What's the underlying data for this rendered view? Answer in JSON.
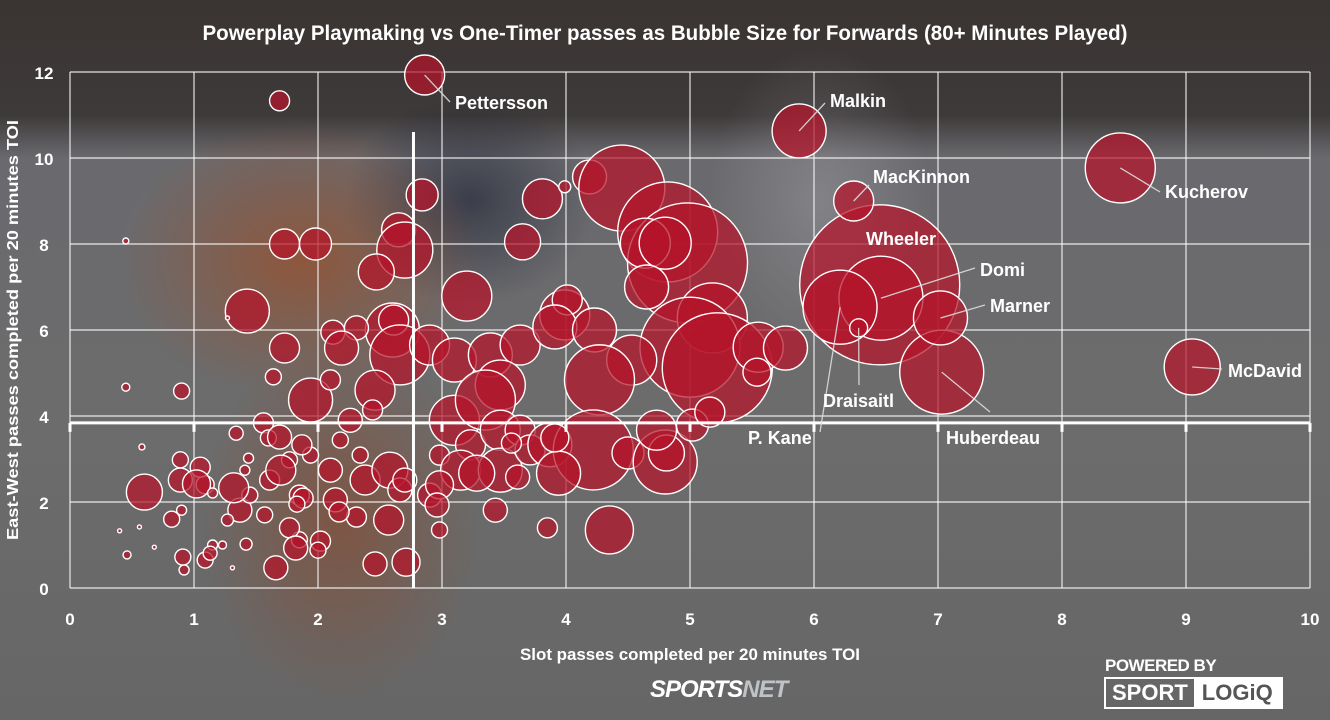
{
  "chart_data": {
    "type": "scatter",
    "bubble": true,
    "title": "Powerplay Playmaking vs One-Timer passes as Bubble Size for Forwards (80+ Minutes Played)",
    "xlabel": "Slot passes completed per 20 minutes TOI",
    "ylabel": "East-West passes completed per 20 minutes TOI",
    "xlim": [
      0,
      10
    ],
    "ylim": [
      0,
      12
    ],
    "xticks": [
      "0",
      "1",
      "2",
      "3",
      "4",
      "5",
      "6",
      "7",
      "8",
      "9",
      "10"
    ],
    "yticks": [
      "0",
      "2",
      "4",
      "6",
      "8",
      "10",
      "12"
    ],
    "grid": true,
    "reference_lines": {
      "x": 2.77,
      "y": 3.84
    },
    "colors": {
      "bubble": "#b4142a",
      "stroke": "#ffffff"
    },
    "labeled_players": [
      {
        "name": "Pettersson",
        "x": 2.86,
        "y": 11.93,
        "size": 10
      },
      {
        "name": "Malkin",
        "x": 5.88,
        "y": 10.63,
        "size": 13.5
      },
      {
        "name": "MacKinnon",
        "x": 6.32,
        "y": 9.0,
        "size": 10
      },
      {
        "name": "Kucherov",
        "x": 8.47,
        "y": 9.77,
        "size": 17.5
      },
      {
        "name": "Wheeler",
        "x": 6.53,
        "y": 7.05,
        "size": 40
      },
      {
        "name": "Domi",
        "x": 6.54,
        "y": 6.74,
        "size": 21
      },
      {
        "name": "Marner",
        "x": 7.02,
        "y": 6.28,
        "size": 13.5
      },
      {
        "name": "P. Kane",
        "x": 6.21,
        "y": 6.53,
        "size": 18.5
      },
      {
        "name": "Draisaitl",
        "x": 6.36,
        "y": 6.05,
        "size": 4.5
      },
      {
        "name": "Huberdeau",
        "x": 7.03,
        "y": 5.02,
        "size": 21
      },
      {
        "name": "McDavid",
        "x": 9.05,
        "y": 5.14,
        "size": 14
      }
    ],
    "points": [
      [
        1.69,
        11.33,
        5
      ],
      [
        0.45,
        8.07,
        1.5
      ],
      [
        1.73,
        8.0,
        7.5
      ],
      [
        1.98,
        8.0,
        8
      ],
      [
        1.43,
        6.44,
        11
      ],
      [
        1.27,
        6.28,
        1
      ],
      [
        1.73,
        5.58,
        7.5
      ],
      [
        1.64,
        4.91,
        4
      ],
      [
        0.45,
        4.67,
        2
      ],
      [
        0.9,
        4.58,
        4
      ],
      [
        2.84,
        9.14,
        8
      ],
      [
        2.65,
        8.33,
        8.5
      ],
      [
        2.7,
        7.86,
        14
      ],
      [
        2.47,
        7.35,
        9
      ],
      [
        3.2,
        6.79,
        12.5
      ],
      [
        2.6,
        6.0,
        13.5
      ],
      [
        2.61,
        6.23,
        7.5
      ],
      [
        2.12,
        5.95,
        6
      ],
      [
        2.31,
        6.05,
        6
      ],
      [
        2.19,
        5.58,
        8.5
      ],
      [
        1.94,
        4.37,
        11
      ],
      [
        2.1,
        4.84,
        5
      ],
      [
        2.66,
        5.42,
        15
      ],
      [
        2.46,
        4.6,
        10
      ],
      [
        2.9,
        5.65,
        10
      ],
      [
        3.1,
        5.3,
        11
      ],
      [
        3.39,
        5.42,
        11
      ],
      [
        3.63,
        5.65,
        10
      ],
      [
        3.81,
        9.05,
        10
      ],
      [
        3.99,
        9.33,
        3
      ],
      [
        4.19,
        9.56,
        8.5
      ],
      [
        4.45,
        9.3,
        21.5
      ],
      [
        4.82,
        8.28,
        25
      ],
      [
        4.98,
        7.56,
        30
      ],
      [
        4.64,
        8.02,
        12.5
      ],
      [
        4.8,
        8.02,
        13
      ],
      [
        4.65,
        7.0,
        11
      ],
      [
        3.65,
        8.05,
        9
      ],
      [
        5.18,
        6.28,
        17.5
      ],
      [
        5.0,
        5.6,
        25
      ],
      [
        5.22,
        5.12,
        27.5
      ],
      [
        5.55,
        5.6,
        12.5
      ],
      [
        5.77,
        5.58,
        11
      ],
      [
        5.54,
        5.02,
        7
      ],
      [
        4.53,
        5.3,
        12.5
      ],
      [
        3.99,
        6.35,
        12.5
      ],
      [
        4.01,
        6.7,
        7.5
      ],
      [
        3.91,
        6.07,
        11
      ],
      [
        4.23,
        6.0,
        11
      ],
      [
        4.27,
        4.84,
        17.5
      ],
      [
        3.47,
        4.72,
        12.5
      ],
      [
        3.1,
        3.9,
        12.5
      ],
      [
        3.35,
        4.37,
        15
      ],
      [
        2.26,
        3.9,
        6
      ],
      [
        2.44,
        4.14,
        5
      ],
      [
        2.18,
        3.44,
        4
      ],
      [
        2.34,
        3.09,
        4
      ],
      [
        1.94,
        3.09,
        4
      ],
      [
        2.1,
        2.74,
        6
      ],
      [
        1.77,
        2.98,
        4
      ],
      [
        1.61,
        2.51,
        5
      ],
      [
        1.37,
        1.81,
        6
      ],
      [
        1.09,
        2.4,
        4.5
      ],
      [
        1.41,
        2.74,
        2.5
      ],
      [
        1.34,
        3.6,
        3.5
      ],
      [
        1.56,
        3.84,
        5
      ],
      [
        1.6,
        3.49,
        4
      ],
      [
        1.45,
        2.16,
        4
      ],
      [
        1.7,
        2.74,
        7.5
      ],
      [
        1.85,
        2.16,
        5
      ],
      [
        2.14,
        2.05,
        6
      ],
      [
        2.38,
        2.51,
        7.5
      ],
      [
        2.58,
        2.74,
        9
      ],
      [
        2.66,
        2.28,
        6
      ],
      [
        2.9,
        2.16,
        6
      ],
      [
        3.23,
        3.33,
        7.5
      ],
      [
        3.47,
        3.67,
        10
      ],
      [
        3.63,
        3.67,
        7.5
      ],
      [
        2.98,
        3.09,
        5
      ],
      [
        3.15,
        2.74,
        10
      ],
      [
        3.47,
        2.74,
        11
      ],
      [
        3.71,
        3.21,
        7.5
      ],
      [
        3.87,
        3.33,
        11
      ],
      [
        4.22,
        3.21,
        20
      ],
      [
        4.5,
        3.14,
        8
      ],
      [
        4.8,
        2.93,
        16
      ],
      [
        4.81,
        3.14,
        9
      ],
      [
        5.02,
        3.79,
        8
      ],
      [
        5.16,
        4.09,
        7.5
      ],
      [
        4.73,
        3.67,
        10
      ],
      [
        3.94,
        2.67,
        11
      ],
      [
        3.91,
        3.49,
        7
      ],
      [
        3.61,
        2.58,
        6
      ],
      [
        3.56,
        3.37,
        5
      ],
      [
        3.43,
        1.81,
        6
      ],
      [
        3.28,
        2.67,
        9
      ],
      [
        2.98,
        2.4,
        7
      ],
      [
        2.98,
        1.35,
        4
      ],
      [
        2.7,
        2.51,
        6
      ],
      [
        2.96,
        1.93,
        6
      ],
      [
        3.85,
        1.4,
        5
      ],
      [
        4.35,
        1.35,
        12
      ],
      [
        2.71,
        0.6,
        7
      ],
      [
        2.46,
        0.56,
        6
      ],
      [
        2.57,
        1.58,
        7.5
      ],
      [
        2.31,
        1.65,
        5
      ],
      [
        2.17,
        1.77,
        5
      ],
      [
        1.85,
        1.12,
        4
      ],
      [
        2.02,
        1.09,
        5
      ],
      [
        1.88,
        2.09,
        5
      ],
      [
        1.66,
        0.47,
        6
      ],
      [
        1.31,
        0.47,
        1
      ],
      [
        0.68,
        0.95,
        1
      ],
      [
        0.6,
        2.23,
        9
      ],
      [
        0.89,
        2.51,
        6
      ],
      [
        1.05,
        2.81,
        5
      ],
      [
        1.02,
        2.42,
        7
      ],
      [
        1.15,
        2.21,
        2.5
      ],
      [
        0.9,
        1.81,
        2.5
      ],
      [
        0.82,
        1.6,
        4
      ],
      [
        0.91,
        0.72,
        4
      ],
      [
        0.92,
        0.42,
        2.5
      ],
      [
        1.09,
        0.65,
        4
      ],
      [
        1.15,
        1.0,
        2.5
      ],
      [
        1.23,
        1.0,
        2
      ],
      [
        1.27,
        1.58,
        3
      ],
      [
        1.42,
        1.02,
        3
      ],
      [
        1.57,
        1.7,
        4
      ],
      [
        1.77,
        1.4,
        5
      ],
      [
        1.82,
        0.93,
        6
      ],
      [
        1.83,
        1.95,
        4
      ],
      [
        2.0,
        0.88,
        4
      ],
      [
        0.56,
        1.42,
        1
      ],
      [
        1.13,
        0.81,
        3.5
      ],
      [
        1.69,
        3.51,
        6
      ],
      [
        1.87,
        3.33,
        5
      ],
      [
        1.44,
        3.02,
        2.5
      ],
      [
        1.32,
        2.33,
        7.5
      ],
      [
        0.4,
        1.33,
        1
      ],
      [
        0.46,
        0.77,
        2
      ],
      [
        0.89,
        2.98,
        4
      ],
      [
        0.58,
        3.28,
        1.5
      ]
    ]
  },
  "branding": {
    "sportsnet_a": "SPORTS",
    "sportsnet_b": "NET",
    "powered_by": "POWERED BY",
    "sport": "SPORT",
    "logiq": "LOGiQ"
  }
}
